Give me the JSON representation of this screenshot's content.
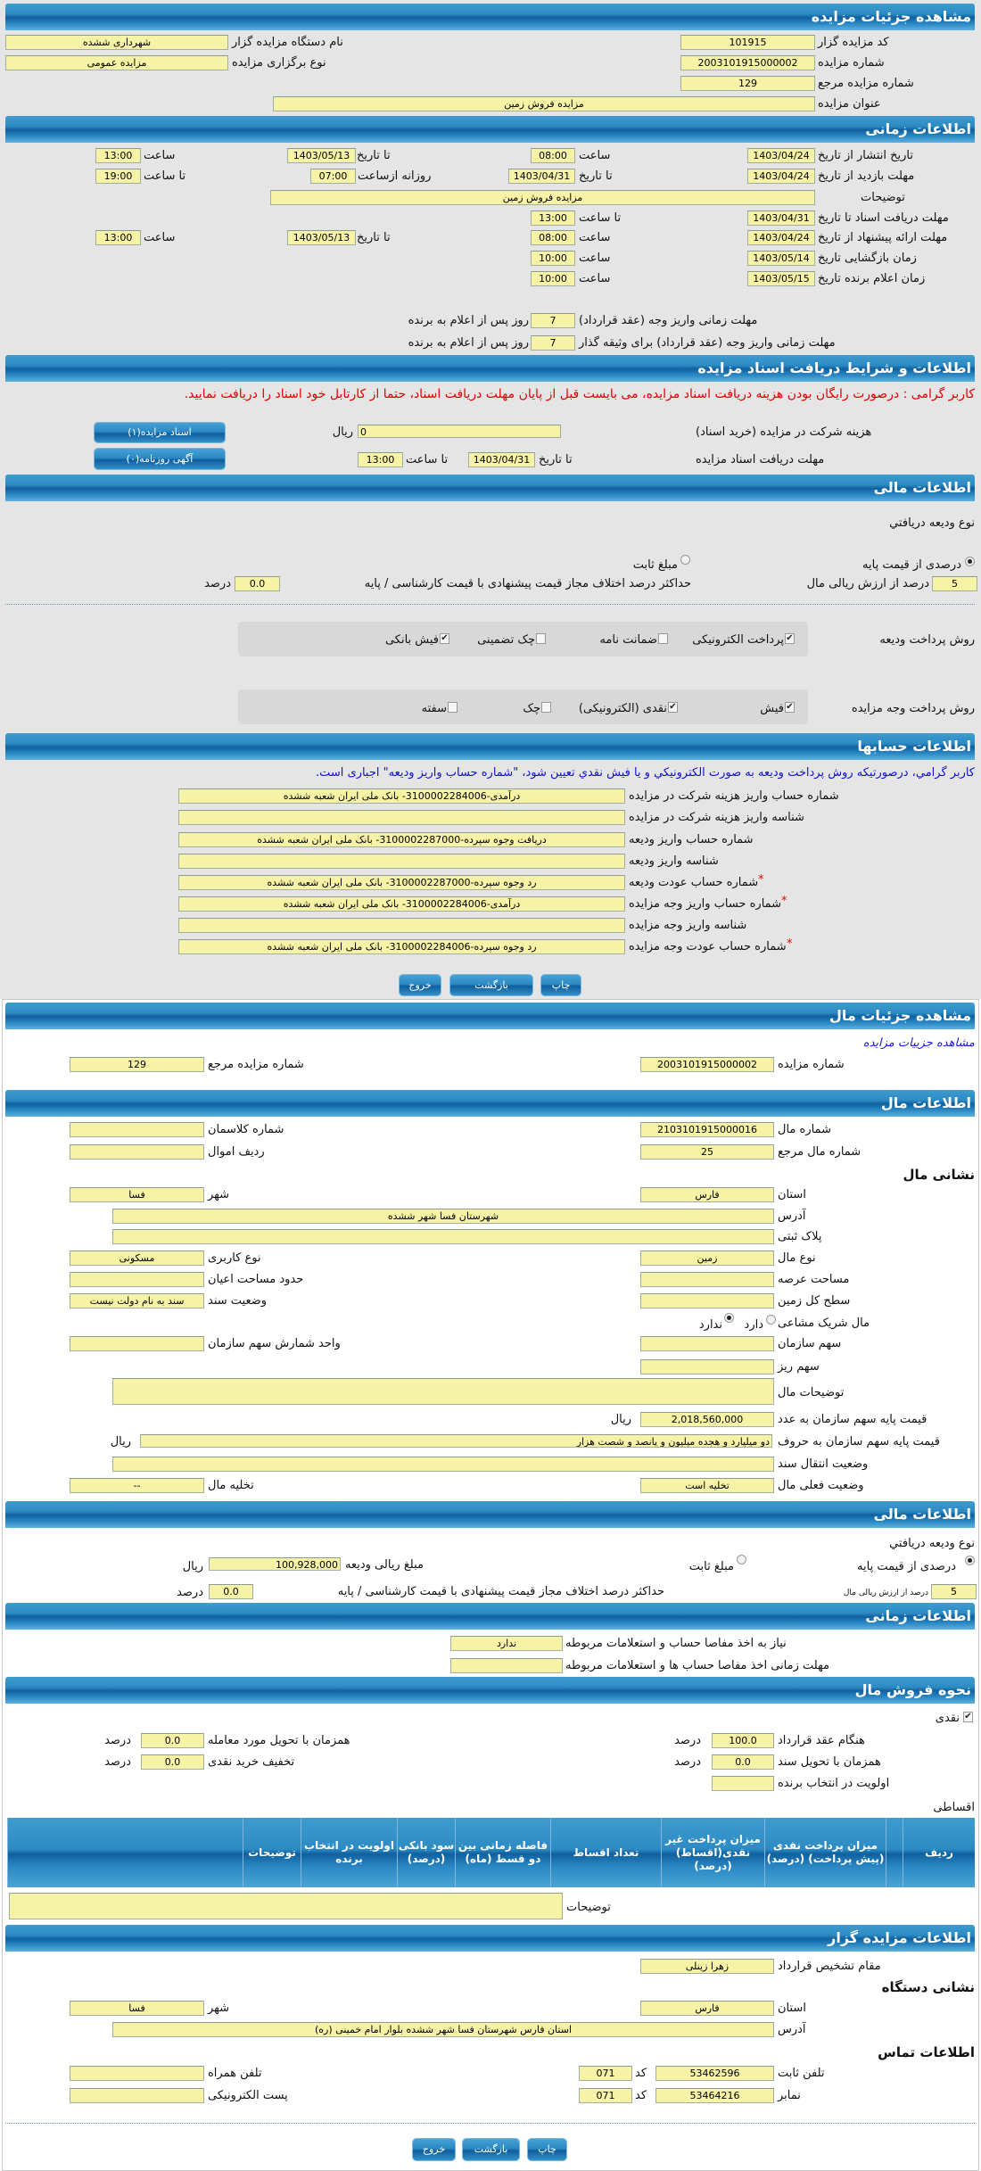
{
  "auction": {
    "header": "مشاهده جزئیات مزایده",
    "code_label": "کد مزایده گزار",
    "code": "101915",
    "org_label": "نام دستگاه مزایده گزار",
    "org": "شهرداری ششده",
    "number_label": "شماره مزایده",
    "number": "2003101915000002",
    "type_label": "نوع برگزاری مزایده",
    "type": "مزایده عمومی",
    "ref_label": "شماره مزایده مرجع",
    "ref": "129",
    "title_label": "عنوان مزایده",
    "title": "مزایده فروش زمین"
  },
  "timing": {
    "header": "اطلاعات زمانی",
    "publish_label": "تاریخ انتشار از تاریخ",
    "publish_from": "1403/04/24",
    "publish_time_label": "ساعت",
    "publish_from_time": "08:00",
    "publish_to_label": "تا تاریخ",
    "publish_to": "1403/05/13",
    "publish_to_time_label": "ساعت",
    "publish_to_time": "13:00",
    "visit_label": "مهلت بازدید از تاریخ",
    "visit_from": "1403/04/24",
    "visit_to_label": "تا تاریخ",
    "visit_to": "1403/04/31",
    "visit_daily_label": "روزانه ازساعت",
    "visit_daily_from": "07:00",
    "visit_daily_to_label": "تا ساعت",
    "visit_daily_to": "19:00",
    "desc_label": "توضیحات",
    "desc": "مزایده فروش زمین",
    "docs_label": "مهلت دریافت اسناد تا تاریخ",
    "docs_to": "1403/04/31",
    "docs_time_label": "تا ساعت",
    "docs_time": "13:00",
    "offer_label": "مهلت ارائه پیشنهاد از تاریخ",
    "offer_from": "1403/04/24",
    "offer_time_label": "ساعت",
    "offer_from_time": "08:00",
    "offer_to_label": "تا تاریخ",
    "offer_to": "1403/05/13",
    "offer_to_time_label": "ساعت",
    "offer_to_time": "13:00",
    "opening_label": "زمان بازگشایی   تاریخ",
    "opening_date": "1403/05/14",
    "opening_time_label": "ساعت",
    "opening_time": "10:00",
    "winner_label": "زمان اعلام برنده   تاریخ",
    "winner_date": "1403/05/15",
    "winner_time_label": "ساعت",
    "winner_time": "10:00",
    "pay_contract_label": "مهلت زمانی واریز وجه (عقد قرارداد)",
    "pay_contract_days": "7",
    "pay_contract_suffix": "روز پس از اعلام به برنده",
    "pay_guarantor_label": "مهلت زمانی واریز وجه (عقد قرارداد) برای وثیقه گذار",
    "pay_guarantor_days": "7",
    "pay_guarantor_suffix": "روز پس از اعلام به برنده"
  },
  "documents": {
    "header": "اطلاعات و شرایط دریافت اسناد مزایده",
    "notice": "کاربر گرامی : درصورت رایگان بودن هزینه دریافت اسناد مزایده، می بایست قبل از پایان مهلت دریافت اسناد، حتما از کارتابل خود اسناد را دریافت نمایید.",
    "fee_label": "هزینه شرکت در مزایده (خرید اسناد)",
    "fee": "0",
    "fee_unit": "ریال",
    "docs_button": "اسناد مزایده(۱)",
    "deadline_label": "مهلت دریافت اسناد مزایده",
    "deadline_date_label": "تا تاریخ",
    "deadline_date": "1403/04/31",
    "deadline_time_label": "تا ساعت",
    "deadline_time": "13:00",
    "ad_button": "آگهی روزنامه(۰)"
  },
  "financial": {
    "header": "اطلاعات مالی",
    "deposit_type_label": "نوع وديعه دريافتي",
    "percent_option": "درصدی از قیمت پایه",
    "percent_selected": true,
    "fixed_option": "مبلغ ثابت",
    "fixed_selected": false,
    "percent_value": "5",
    "percent_suffix": "درصد از ارزش ریالی مال",
    "max_diff_label": "حداکثر درصد اختلاف مجاز قیمت پیشنهادی با قیمت کارشناسی / پایه",
    "max_diff": "0.0",
    "max_diff_unit": "درصد",
    "deposit_method_label": "روش پرداخت ودیعه",
    "deposit_methods": [
      {
        "label": "پرداخت الکترونیکی",
        "checked": true
      },
      {
        "label": "ضمانت نامه",
        "checked": false
      },
      {
        "label": "چک تضمینی",
        "checked": false
      },
      {
        "label": "فیش بانکی",
        "checked": true
      }
    ],
    "payment_method_label": "روش پرداخت وجه مزایده",
    "payment_methods": [
      {
        "label": "فیش",
        "checked": true
      },
      {
        "label": "نقدی (الکترونیکی)",
        "checked": true
      },
      {
        "label": "چک",
        "checked": false
      },
      {
        "label": "سفته",
        "checked": false
      }
    ]
  },
  "accounts": {
    "header": "اطلاعات حسابها",
    "notice": "کاربر گرامي، درصورتيکه روش پرداخت وديعه به صورت الکترونيکي و يا فيش نقدي تعيين شود، \"شماره حساب واریز ودیعه\" اجباری است.",
    "rows": [
      {
        "label": "شماره حساب واریز هزینه شرکت در مزایده",
        "required": false,
        "value": "درآمدی-3100002284006- بانک ملی ایران شعبه ششده"
      },
      {
        "label": "شناسه واریز هزینه شرکت در مزایده",
        "required": false,
        "value": ""
      },
      {
        "label": "شماره حساب واریز ودیعه",
        "required": false,
        "value": "دریافت وجوه سپرده-3100002287000- بانک ملی ایران شعبه ششده"
      },
      {
        "label": "شناسه واریز ودیعه",
        "required": false,
        "value": ""
      },
      {
        "label": "شماره حساب عودت ودیعه",
        "required": true,
        "value": "رد وجوه سپرده-3100002287000- بانک ملی ایران شعبه ششده"
      },
      {
        "label": "شماره حساب واریز وجه مزایده",
        "required": true,
        "value": "درآمدی-3100002284006- بانک ملی ایران شعبه ششده"
      },
      {
        "label": "شناسه واریز وجه مزایده",
        "required": false,
        "value": ""
      },
      {
        "label": "شماره حساب عودت وجه مزایده",
        "required": true,
        "value": "رد وجوه سپرده-3100002284006- بانک ملی ایران شعبه ششده"
      }
    ],
    "required_mark": "*"
  },
  "actions": {
    "print": "چاپ",
    "back": "بازگشت",
    "exit": "خروج"
  },
  "item": {
    "header": "مشاهده جزئیات مال",
    "auction_link": "مشاهده جزییات مزایده",
    "number_label": "شماره مزایده",
    "number": "2003101915000002",
    "ref_label": "شماره مزایده مرجع",
    "ref": "129"
  },
  "item_info": {
    "header": "اطلاعات مال",
    "item_no_label": "شماره مال",
    "item_no": "2103101915000016",
    "class_label": "شماره کلاسمان",
    "class": "",
    "item_ref_label": "شماره مال مرجع",
    "item_ref": "25",
    "row_label": "ردیف اموال",
    "row": "",
    "address_heading": "نشانی مال",
    "province_label": "استان",
    "province": "فارس",
    "city_label": "شهر",
    "city": "فسا",
    "address_label": "آدرس",
    "address": "شهرستان فسا شهر ششده",
    "plaque_label": "پلاک ثبتی",
    "plaque": "",
    "kind_label": "نوع مال",
    "kind": "زمین",
    "usage_label": "نوع کاربری",
    "usage": "مسکونی",
    "area_label": "مساحت عرصه",
    "area": "",
    "building_label": "حدود مساحت اعیان",
    "building": "",
    "land_label": "سطح کل زمین",
    "land": "",
    "deed_label": "وضعیت سند",
    "deed": "سند به نام دولت نیست",
    "shared_label": "مال شریک مشاعی",
    "shared_yes": "دارد",
    "shared_no": "ندارد",
    "shared_value": "ندارد",
    "share_label": "سهم سازمان",
    "share": "",
    "share_unit_label": "واحد شمارش سهم سازمان",
    "share_unit": "",
    "subshare_label": "سهم ریز",
    "subshare": "",
    "desc_label": "توضیحات مال",
    "desc": "",
    "price_num_label": "قیمت پایه سهم سازمان به عدد",
    "price_num": "2,018,560,000",
    "price_num_unit": "ریال",
    "price_words_label": "قیمت پایه سهم سازمان به حروف",
    "price_words": "دو میلیارد و هجده میلیون و پانصد و شصت هزار",
    "price_words_unit": "ریال",
    "transfer_label": "وضعیت انتقال سند",
    "transfer": "",
    "status_label": "وضعیت فعلی مال",
    "status": "تخلیه است",
    "evac_label": "تخلیه مال",
    "evac": "--"
  },
  "item_fin": {
    "header": "اطلاعات مالی",
    "deposit_type_label": "نوع وديعه دريافتي",
    "percent_option": "درصدی از قیمت پایه",
    "percent_selected": true,
    "fixed_option": "مبلغ ثابت",
    "fixed_selected": false,
    "deposit_amount_label": "مبلغ ریالی ودیعه",
    "deposit_amount": "100,928,000",
    "deposit_unit": "ریال",
    "percent_value": "5",
    "percent_suffix": "درصد از ارزش ریالی مال",
    "max_diff_label": "حداکثر درصد اختلاف مجاز قیمت پیشنهادی با قیمت کارشناسی / پایه",
    "max_diff": "0.0",
    "max_diff_unit": "درصد"
  },
  "item_time": {
    "header": "اطلاعات زمانی",
    "clearance_label": "نیاز به اخذ مفاصا حساب و استعلامات مربوطه",
    "clearance": "ندارد",
    "clearance_deadline_label": "مهلت زمانی اخذ مفاصا حساب ها و استعلامات مربوطه",
    "clearance_deadline": ""
  },
  "sale": {
    "header": "نحوه فروش مال",
    "cash_label": "نقدی",
    "cash_checked": true,
    "contract_label": "هنگام عقد قرارداد",
    "contract": "100.0",
    "delivery_label": "همزمان با تحویل مورد معامله",
    "delivery": "0.0",
    "deed_label": "همزمان با تحویل سند",
    "deed": "0.0",
    "discount_label": "تخفیف خرید نقدی",
    "discount": "0.0",
    "priority_label": "اولویت در انتخاب برنده",
    "priority": "",
    "percent_unit": "درصد",
    "installment_label": "اقساطی",
    "table_columns": [
      "ردیف",
      "",
      "میزان پرداخت نقدی (پیش پرداخت) (درصد)",
      "میزان پرداخت غیر نقدی(اقساط) (درصد)",
      "تعداد اقساط",
      "فاصله زمانی بین دو قسط (ماه)",
      "سود بانکی (درصد)",
      "اولویت در انتخاب برنده",
      "توضیحات",
      ""
    ],
    "desc_label": "توضیحات",
    "desc": ""
  },
  "seller": {
    "header": "اطلاعات مزایده گزار",
    "authority_label": "مقام تشخیص قرارداد",
    "authority": "زهرا زینلی",
    "address_heading": "نشانی دستگاه",
    "province_label": "استان",
    "province": "فارس",
    "city_label": "شهر",
    "city": "فسا",
    "address_label": "آدرس",
    "address": "استان فارس شهرستان فسا شهر ششده بلوار امام خمینی (ره)",
    "contact_heading": "اطلاعات تماس",
    "phone_label": "تلفن ثابت",
    "phone": "53462596",
    "phone_code_label": "کد",
    "phone_code": "071",
    "mobile_label": "تلفن همراه",
    "mobile": "",
    "fax_label": "نمابر",
    "fax": "53464216",
    "fax_code_label": "کد",
    "fax_code": "071",
    "email_label": "پست الکترونیکی",
    "email": ""
  },
  "colors": {
    "header_blue": "#10609f",
    "field_yellow": "#f7f3a6",
    "notice_red": "#e00000",
    "notice_blue": "#1010d0"
  }
}
